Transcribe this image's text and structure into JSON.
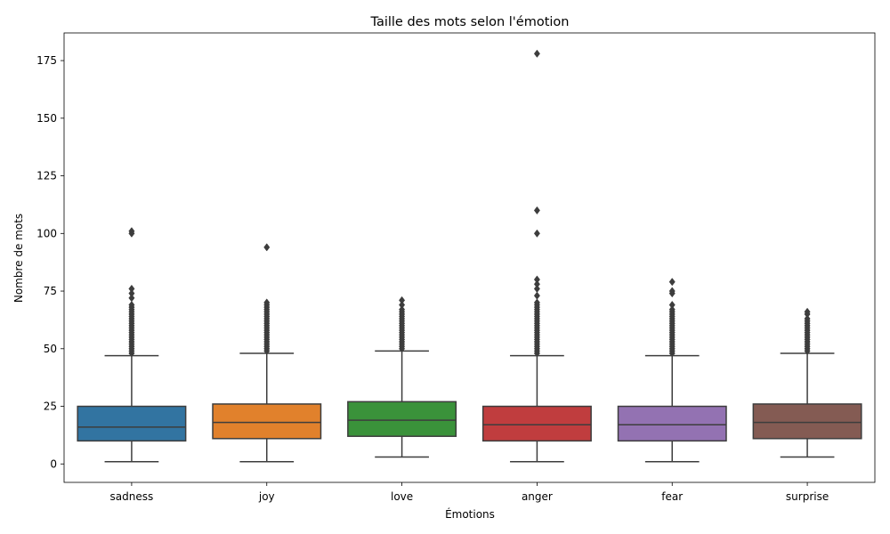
{
  "chart_data": {
    "type": "box",
    "title": "Taille des mots selon l'émotion",
    "xlabel": "Émotions",
    "ylabel": "Nombre de mots",
    "ylim": [
      -8,
      187
    ],
    "yticks": [
      0,
      25,
      50,
      75,
      100,
      125,
      150,
      175
    ],
    "grid": false,
    "legend": "none",
    "categories": [
      "sadness",
      "joy",
      "love",
      "anger",
      "fear",
      "surprise"
    ],
    "boxes": [
      {
        "name": "sadness",
        "color": "#3274a1",
        "whisker_low": 1,
        "q1": 10,
        "median": 16,
        "q3": 25,
        "whisker_high": 47,
        "outliers": [
          48,
          49,
          50,
          51,
          52,
          53,
          54,
          55,
          56,
          57,
          58,
          59,
          60,
          61,
          62,
          63,
          64,
          65,
          66,
          67,
          68,
          69,
          72,
          74,
          76,
          100,
          101
        ]
      },
      {
        "name": "joy",
        "color": "#e1812c",
        "whisker_low": 1,
        "q1": 11,
        "median": 18,
        "q3": 26,
        "whisker_high": 48,
        "outliers": [
          49,
          50,
          51,
          52,
          53,
          54,
          55,
          56,
          57,
          58,
          59,
          60,
          61,
          62,
          63,
          64,
          65,
          66,
          67,
          68,
          69,
          70,
          94
        ]
      },
      {
        "name": "love",
        "color": "#3a923a",
        "whisker_low": 3,
        "q1": 12,
        "median": 19,
        "q3": 27,
        "whisker_high": 49,
        "outliers": [
          50,
          51,
          52,
          53,
          54,
          55,
          56,
          57,
          58,
          59,
          60,
          61,
          62,
          63,
          64,
          65,
          66,
          67,
          69,
          71
        ]
      },
      {
        "name": "anger",
        "color": "#c03d3e",
        "whisker_low": 1,
        "q1": 10,
        "median": 17,
        "q3": 25,
        "whisker_high": 47,
        "outliers": [
          48,
          49,
          50,
          51,
          52,
          53,
          54,
          55,
          56,
          57,
          58,
          59,
          60,
          61,
          62,
          63,
          64,
          65,
          66,
          67,
          68,
          69,
          70,
          73,
          76,
          78,
          80,
          100,
          110,
          178
        ]
      },
      {
        "name": "fear",
        "color": "#9372b2",
        "whisker_low": 1,
        "q1": 10,
        "median": 17,
        "q3": 25,
        "whisker_high": 47,
        "outliers": [
          48,
          49,
          50,
          51,
          52,
          53,
          54,
          55,
          56,
          57,
          58,
          59,
          60,
          61,
          62,
          63,
          64,
          65,
          66,
          67,
          69,
          74,
          75,
          79
        ]
      },
      {
        "name": "surprise",
        "color": "#845b53",
        "whisker_low": 3,
        "q1": 11,
        "median": 18,
        "q3": 26,
        "whisker_high": 48,
        "outliers": [
          49,
          50,
          51,
          52,
          53,
          54,
          55,
          56,
          57,
          58,
          59,
          60,
          61,
          62,
          63,
          65,
          66
        ]
      }
    ]
  }
}
